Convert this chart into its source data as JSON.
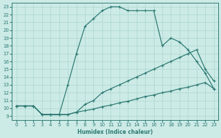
{
  "xlabel": "Humidex (Indice chaleur)",
  "xlim": [
    -0.5,
    23.5
  ],
  "ylim": [
    8.5,
    23.5
  ],
  "yticks": [
    9,
    10,
    11,
    12,
    13,
    14,
    15,
    16,
    17,
    18,
    19,
    20,
    21,
    22,
    23
  ],
  "xticks": [
    0,
    1,
    2,
    3,
    4,
    5,
    6,
    7,
    8,
    9,
    10,
    11,
    12,
    13,
    14,
    15,
    16,
    17,
    18,
    19,
    20,
    21,
    22,
    23
  ],
  "bg_color": "#cceae6",
  "line_color": "#2d7a73",
  "grid_color": "#aad6d0",
  "line1_x": [
    0,
    1,
    2,
    3,
    4,
    5,
    6,
    7,
    8,
    9,
    10,
    11,
    12,
    13,
    14,
    15,
    16,
    17,
    18,
    19,
    20,
    21,
    22,
    23
  ],
  "line1_y": [
    10.3,
    10.3,
    10.3,
    9.2,
    9.2,
    9.2,
    13.0,
    17.0,
    20.5,
    21.5,
    22.5,
    23.0,
    23.0,
    22.5,
    22.5,
    22.5,
    22.5,
    18.0,
    19.0,
    18.5,
    17.5,
    16.0,
    14.5,
    12.5
  ],
  "line2_x": [
    0,
    1,
    2,
    3,
    4,
    5,
    6,
    7,
    8,
    9,
    10,
    11,
    12,
    13,
    14,
    15,
    16,
    17,
    18,
    19,
    20,
    21,
    22,
    23
  ],
  "line2_y": [
    10.3,
    10.3,
    10.3,
    9.2,
    9.2,
    9.2,
    9.2,
    9.5,
    10.5,
    11.0,
    12.0,
    12.5,
    13.0,
    13.5,
    14.0,
    14.5,
    15.0,
    15.5,
    16.0,
    16.5,
    17.0,
    17.5,
    15.0,
    13.5
  ],
  "line3_x": [
    0,
    1,
    2,
    3,
    4,
    5,
    6,
    7,
    8,
    9,
    10,
    11,
    12,
    13,
    14,
    15,
    16,
    17,
    18,
    19,
    20,
    21,
    22,
    23
  ],
  "line3_y": [
    10.3,
    10.3,
    10.3,
    9.2,
    9.2,
    9.2,
    9.2,
    9.5,
    9.7,
    9.9,
    10.2,
    10.4,
    10.7,
    10.9,
    11.2,
    11.5,
    11.7,
    12.0,
    12.2,
    12.5,
    12.7,
    13.0,
    13.3,
    12.5
  ]
}
